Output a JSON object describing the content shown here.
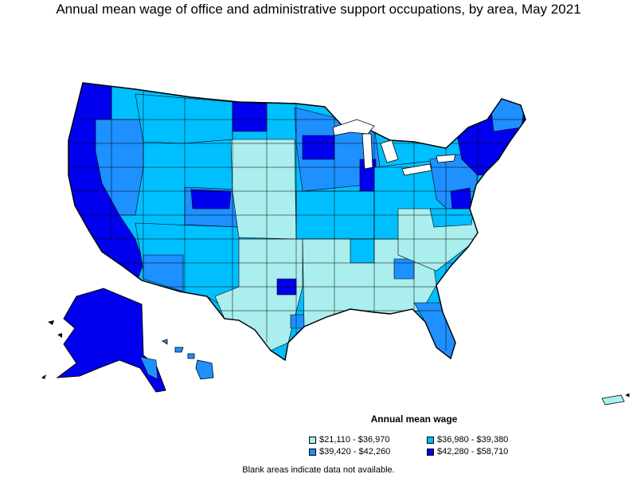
{
  "title": "Annual mean wage of office and administrative support occupations, by area, May 2021",
  "legend": {
    "title": "Annual mean wage",
    "items": [
      {
        "label": "$21,110 - $36,970",
        "color": "#aaeeee"
      },
      {
        "label": "$36,980 - $39,380",
        "color": "#00bfff"
      },
      {
        "label": "$39,420 - $42,260",
        "color": "#1e90ff"
      },
      {
        "label": "$42,280 - $58,710",
        "color": "#0000ee"
      }
    ]
  },
  "footnote": "Blank areas indicate data not available.",
  "colors": {
    "outline": "#000000",
    "background": "#ffffff"
  }
}
